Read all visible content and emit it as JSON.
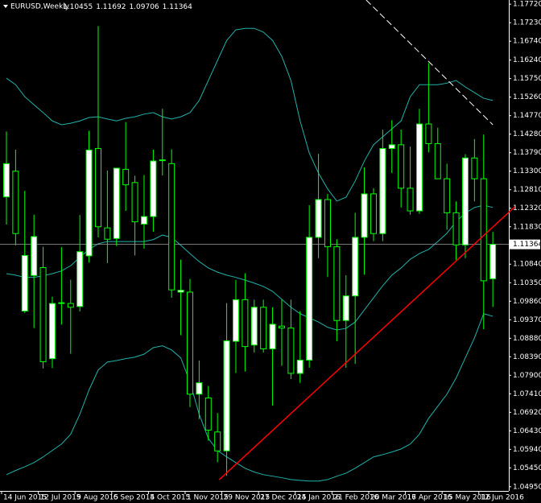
{
  "chart_data": {
    "type": "candlestick",
    "title": "EURUSD,Weekly",
    "categories": [
      "14 Jun 2015",
      null,
      null,
      null,
      "12 Jul 2015",
      null,
      null,
      null,
      "9 Aug 2015",
      null,
      null,
      null,
      "6 Sep 2015",
      null,
      null,
      null,
      "4 Oct 2015",
      null,
      null,
      null,
      "1 Nov 2015",
      null,
      null,
      null,
      "29 Nov 2015",
      null,
      null,
      null,
      "27 Dec 2015",
      null,
      null,
      null,
      "24 Jan 2016",
      null,
      null,
      null,
      "21 Feb 2016",
      null,
      null,
      null,
      "20 Mar 2016",
      null,
      null,
      null,
      "17 Apr 2016",
      null,
      null,
      null,
      "15 May 2016",
      null,
      null,
      null,
      "12 Jun 2016",
      null
    ],
    "open": [
      1.1262,
      1.133,
      1.096,
      1.1054,
      1.1075,
      1.0834,
      1.0982,
      1.098,
      1.0972,
      1.1106,
      1.139,
      1.118,
      1.1152,
      1.1335,
      1.13,
      1.119,
      1.121,
      1.136,
      1.135,
      1.101,
      1.101,
      1.074,
      1.073,
      1.064,
      1.059,
      1.088,
      1.099,
      1.087,
      1.097,
      1.086,
      1.092,
      1.0915,
      1.0795,
      1.083,
      1.1155,
      1.1255,
      1.113,
      1.0935,
      1.1,
      1.1155,
      1.127,
      1.1165,
      1.139,
      1.14,
      1.1285,
      1.1225,
      1.1455,
      1.1403,
      1.131,
      1.122,
      1.1135,
      1.1365,
      1.131,
      1.10455
    ],
    "high": [
      1.1435,
      1.1387,
      1.1278,
      1.1215,
      1.113,
      1.0998,
      1.1129,
      1.1043,
      1.1214,
      1.1437,
      1.1714,
      1.1332,
      1.1336,
      1.146,
      1.1318,
      1.132,
      1.1387,
      1.1495,
      1.1388,
      1.1096,
      1.1045,
      1.0829,
      1.0762,
      1.069,
      1.0981,
      1.1042,
      1.106,
      1.099,
      1.099,
      1.097,
      1.099,
      1.099,
      1.096,
      1.124,
      1.1376,
      1.127,
      1.115,
      1.1055,
      1.122,
      1.134,
      1.1285,
      1.144,
      1.1465,
      1.144,
      1.1395,
      1.1495,
      1.1616,
      1.1445,
      1.135,
      1.125,
      1.1375,
      1.1415,
      1.1427,
      1.11692
    ],
    "low": [
      1.1189,
      1.1134,
      1.0955,
      1.0915,
      1.0808,
      1.0809,
      1.0924,
      1.0847,
      1.0959,
      1.1088,
      1.1155,
      1.1087,
      1.1132,
      1.1225,
      1.1107,
      1.1125,
      1.117,
      1.1319,
      1.0995,
      1.0896,
      1.0706,
      1.0674,
      1.0617,
      1.056,
      1.0524,
      1.0796,
      1.08,
      1.085,
      1.085,
      1.071,
      1.0815,
      1.078,
      1.077,
      1.081,
      1.11,
      1.105,
      1.088,
      1.081,
      1.082,
      1.1056,
      1.1145,
      1.1145,
      1.1325,
      1.1234,
      1.1215,
      1.1217,
      1.138,
      1.131,
      1.1175,
      1.1095,
      1.11,
      1.125,
      1.0912,
      1.09706
    ],
    "close": [
      1.135,
      1.1165,
      1.1107,
      1.1157,
      1.0826,
      1.098,
      1.0982,
      1.097,
      1.1117,
      1.1386,
      1.1183,
      1.115,
      1.1338,
      1.1294,
      1.1196,
      1.121,
      1.1357,
      1.136,
      1.1016,
      1.1015,
      1.074,
      1.077,
      1.0645,
      1.059,
      1.0881,
      1.099,
      1.0866,
      1.097,
      1.086,
      1.0925,
      1.0915,
      1.0795,
      1.083,
      1.1155,
      1.1255,
      1.113,
      1.0935,
      1.1,
      1.1155,
      1.127,
      1.1165,
      1.139,
      1.14,
      1.1285,
      1.1225,
      1.1455,
      1.1403,
      1.131,
      1.122,
      1.1135,
      1.1365,
      1.131,
      1.104,
      1.11364
    ],
    "bands": [
      {
        "color": "#20b2aa",
        "values": [
          1.1576,
          1.1559,
          1.1527,
          1.1506,
          1.1485,
          1.1463,
          1.1453,
          1.1457,
          1.1463,
          1.1472,
          1.1474,
          1.1468,
          1.1463,
          1.147,
          1.1474,
          1.1481,
          1.1485,
          1.1474,
          1.1468,
          1.1474,
          1.1485,
          1.1517,
          1.157,
          1.1623,
          1.1676,
          1.1704,
          1.1708,
          1.1708,
          1.1698,
          1.1676,
          1.1634,
          1.157,
          1.1463,
          1.1378,
          1.1325,
          1.1283,
          1.1251,
          1.1261,
          1.1304,
          1.1357,
          1.14,
          1.1421,
          1.1442,
          1.1463,
          1.1527,
          1.1559,
          1.1559,
          1.1559,
          1.1563,
          1.157,
          1.1553,
          1.1538,
          1.1523,
          1.1517
        ]
      },
      {
        "color": "#20b2aa",
        "values": [
          1.1059,
          1.1055,
          1.1049,
          1.1049,
          1.1053,
          1.1059,
          1.1066,
          1.108,
          1.1102,
          1.1123,
          1.1138,
          1.1144,
          1.1144,
          1.1144,
          1.1144,
          1.1144,
          1.1149,
          1.1161,
          1.1155,
          1.1134,
          1.1112,
          1.1091,
          1.1074,
          1.1063,
          1.1055,
          1.1049,
          1.1042,
          1.1034,
          1.1025,
          1.1012,
          1.0991,
          1.097,
          1.0953,
          1.0942,
          1.0931,
          1.0917,
          1.091,
          1.0914,
          1.0931,
          1.0963,
          1.0995,
          1.1027,
          1.1055,
          1.1074,
          1.1097,
          1.1112,
          1.1123,
          1.1144,
          1.1166,
          1.1197,
          1.1219,
          1.1234,
          1.124,
          1.1234
        ]
      },
      {
        "color": "#20b2aa",
        "values": [
          1.0527,
          1.0538,
          1.0548,
          1.0559,
          1.0574,
          1.0591,
          1.0608,
          1.0634,
          1.0687,
          1.0751,
          1.0804,
          1.0825,
          1.0829,
          1.0834,
          1.0838,
          1.0846,
          1.0863,
          1.0868,
          1.0857,
          1.0836,
          1.0772,
          1.0687,
          1.0623,
          1.0591,
          1.0574,
          1.0559,
          1.0544,
          1.0534,
          1.0527,
          1.0523,
          1.0519,
          1.0514,
          1.0512,
          1.051,
          1.051,
          1.0514,
          1.0523,
          1.0531,
          1.0544,
          1.0559,
          1.0574,
          1.058,
          1.0587,
          1.0595,
          1.0608,
          1.0634,
          1.0676,
          1.0708,
          1.074,
          1.0783,
          1.0836,
          1.0889,
          1.0953,
          1.0946
        ]
      }
    ],
    "trendlines": [
      {
        "color": "#ff0000",
        "dashed": false,
        "from": [
          23.2,
          1.0514
        ],
        "to": [
          55.4,
          1.1236
        ]
      },
      {
        "color": "#ffffff",
        "dashed": true,
        "from": [
          39.2,
          1.1783
        ],
        "to": [
          53,
          1.1453
        ]
      }
    ],
    "bull_color": "#ffffff",
    "bear_color": "#000000",
    "wick_color": "#00ff00",
    "xlim": [
      -0.7,
      54.74
    ],
    "ylim": [
      1.0484,
      1.1783
    ],
    "yticks": [
      {
        "value": 1.1772,
        "label": "1.17720"
      },
      {
        "value": 1.1723,
        "label": "1.17230"
      },
      {
        "value": 1.1674,
        "label": "1.16740"
      },
      {
        "value": 1.1624,
        "label": "1.16240"
      },
      {
        "value": 1.1575,
        "label": "1.15750"
      },
      {
        "value": 1.1526,
        "label": "1.15260"
      },
      {
        "value": 1.1477,
        "label": "1.14770"
      },
      {
        "value": 1.1428,
        "label": "1.14280"
      },
      {
        "value": 1.1379,
        "label": "1.13790"
      },
      {
        "value": 1.133,
        "label": "1.13300"
      },
      {
        "value": 1.1281,
        "label": "1.12810"
      },
      {
        "value": 1.1232,
        "label": "1.12320"
      },
      {
        "value": 1.1183,
        "label": "1.11830"
      },
      {
        "value": 1.1084,
        "label": "1.10840"
      },
      {
        "value": 1.1035,
        "label": "1.10350"
      },
      {
        "value": 1.0986,
        "label": "1.09860"
      },
      {
        "value": 1.0937,
        "label": "1.09370"
      },
      {
        "value": 1.0888,
        "label": "1.08880"
      },
      {
        "value": 1.0839,
        "label": "1.08390"
      },
      {
        "value": 1.079,
        "label": "1.07900"
      },
      {
        "value": 1.0741,
        "label": "1.07410"
      },
      {
        "value": 1.0692,
        "label": "1.06920"
      },
      {
        "value": 1.0643,
        "label": "1.06430"
      },
      {
        "value": 1.0594,
        "label": "1.05940"
      },
      {
        "value": 1.0545,
        "label": "1.05450"
      },
      {
        "value": 1.0495,
        "label": "1.04950"
      }
    ],
    "grid": false
  }
}
